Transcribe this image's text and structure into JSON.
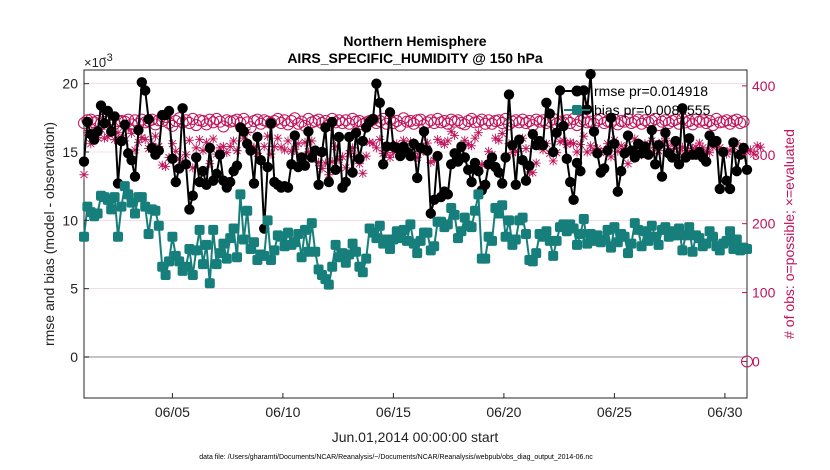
{
  "chart_data": {
    "type": "line",
    "title": "Northern Hemisphere",
    "subtitle": "AIRS_SPECIFIC_HUMIDITY @ 150 hPa",
    "xlabel": "Jun.01,2014 00:00:00 start",
    "ylabel": "rmse and bias (model - observation)",
    "y2label": "# of obs: o=possible; ×=evaluated",
    "y_exponent_label": "×10",
    "y_exponent_power": "-3",
    "footnote": "data file: /Users/gharamti/Documents/NCAR/Reanalysis/~/Documents/NCAR/Reanalysis/webpub/obs_diag_output_2014-06.nc",
    "x_ticks": [
      "06/05",
      "06/10",
      "06/15",
      "06/20",
      "06/25",
      "06/30"
    ],
    "x_tick_days": [
      5,
      10,
      15,
      20,
      25,
      30
    ],
    "xlim": [
      1,
      31
    ],
    "y_ticks": [
      "0",
      "5",
      "10",
      "15",
      "20"
    ],
    "ylim": [
      -3,
      21
    ],
    "y2_ticks": [
      "0",
      "100",
      "200",
      "300",
      "400"
    ],
    "y2lim": [
      -53,
      423
    ],
    "grid": "horizontal",
    "legend_placement": "top-right",
    "series": [
      {
        "name": "rmse pr=0.014918",
        "color": "#000000",
        "axis": "left",
        "marker": "circle",
        "values": [
          14.3,
          17.2,
          16.3,
          15.9,
          16.5,
          18.4,
          17.1,
          18.0,
          16.5,
          17.6,
          12.7,
          15.8,
          17.0,
          14.9,
          14.4,
          13.2,
          16.6,
          20.1,
          19.5,
          17.4,
          15.3,
          14.8,
          15.1,
          17.7,
          17.7,
          18.0,
          14.5,
          12.8,
          13.8,
          18.2,
          14.1,
          10.8,
          11.8,
          14.6,
          12.8,
          13.6,
          12.6,
          15.3,
          12.9,
          13.4,
          14.8,
          12.9,
          12.4,
          12.8,
          13.6,
          14.0,
          16.8,
          16.5,
          15.6,
          15.1,
          12.7,
          16.1,
          14.4,
          9.4,
          13.9,
          17.1,
          12.8,
          12.6,
          12.4,
          12.5,
          12.4,
          14.1,
          16.2,
          13.9,
          14.6,
          14.0,
          16.5,
          14.6,
          15.1,
          12.6,
          15.0,
          16.8,
          12.8,
          17.2,
          13.7,
          16.1,
          12.4,
          12.8,
          16.1,
          13.5,
          16.4,
          14.5,
          15.8,
          16.8,
          17.2,
          17.4,
          20.0,
          18.6,
          14.1,
          15.4,
          17.9,
          15.4,
          15.3,
          14.7,
          15.4,
          15.0,
          14.7,
          15.6,
          13.1,
          15.3,
          16.5,
          15.1,
          10.5,
          11.5,
          14.7,
          11.7,
          12.1,
          11.9,
          14.1,
          14.9,
          14.3,
          15.4,
          14.6,
          13.7,
          12.8,
          14.2,
          13.6,
          12.2,
          12.6,
          14.1,
          14.6,
          13.9,
          13.5,
          12.7,
          14.6,
          19.2,
          15.5,
          12.6,
          15.9,
          14.4,
          12.9,
          14.0,
          16.3,
          15.5,
          15.8,
          15.5,
          18.6,
          17.8,
          15.0,
          16.4,
          19.5,
          16.9,
          14.5,
          12.8,
          11.5,
          14.2,
          13.6,
          19.5,
          18.1,
          20.7,
          16.5,
          14.9,
          13.5,
          13.8,
          15.1,
          17.5,
          15.6,
          12.1,
          13.6,
          14.9,
          16.2,
          15.1,
          14.6,
          15.6,
          14.9,
          15.4,
          14.8,
          16.6,
          14.1,
          15.5,
          13.2,
          16.4,
          14.9,
          14.6,
          15.8,
          14.1,
          18.2,
          14.6,
          16.0,
          14.8,
          14.8,
          15.0,
          14.6,
          14.3,
          16.2,
          15.7,
          15.8,
          12.3,
          15.0,
          12.9,
          12.3,
          15.7,
          13.6,
          14.8,
          15.3,
          13.7
        ]
      },
      {
        "name": "bias pr=0.0085555",
        "color": "#177f7b",
        "axis": "left",
        "marker": "square",
        "values": [
          8.8,
          11.0,
          10.6,
          10.3,
          10.5,
          11.8,
          11.7,
          11.5,
          10.8,
          11.7,
          8.8,
          11.0,
          12.5,
          11.9,
          11.3,
          10.5,
          11.7,
          11.7,
          11.0,
          9.0,
          10.8,
          10.7,
          9.6,
          6.6,
          6.0,
          7.0,
          8.8,
          7.4,
          7.0,
          6.3,
          6.6,
          7.9,
          6.0,
          7.8,
          9.3,
          6.8,
          8.2,
          5.4,
          9.3,
          6.8,
          7.6,
          8.3,
          7.2,
          8.7,
          9.4,
          7.3,
          11.9,
          8.6,
          10.7,
          7.9,
          8.4,
          7.1,
          7.5,
          7.4,
          10.0,
          7.1,
          7.8,
          8.9,
          8.8,
          8.1,
          9.1,
          8.2,
          8.4,
          9.0,
          7.3,
          9.3,
          7.7,
          9.8,
          7.7,
          6.4,
          6.0,
          5.7,
          5.3,
          6.6,
          8.2,
          7.3,
          7.6,
          6.9,
          7.5,
          8.3,
          7.7,
          6.6,
          6.2,
          7.2,
          9.4,
          9.1,
          8.7,
          9.6,
          8.3,
          8.6,
          7.9,
          8.6,
          9.2,
          8.7,
          9.3,
          8.5,
          9.7,
          8.3,
          7.6,
          8.5,
          9.1,
          9.1,
          7.8,
          8.1,
          9.9,
          9.9,
          9.5,
          9.7,
          10.9,
          10.4,
          8.7,
          9.2,
          10.2,
          9.6,
          9.5,
          10.7,
          11.9,
          7.2,
          7.2,
          8.8,
          8.5,
          10.9,
          10.5,
          11.1,
          8.8,
          10.0,
          8.2,
          8.6,
          10.0,
          10.2,
          9.0,
          7.1,
          7.0,
          7.6,
          9.0,
          8.8,
          9.2,
          8.5,
          7.4,
          8.5,
          9.5,
          9.7,
          9.2,
          9.7,
          9.4,
          8.2,
          9.0,
          10.1,
          8.3,
          9.0,
          8.5,
          8.9,
          8.4,
          8.6,
          9.3,
          8.0,
          9.5,
          8.4,
          9.0,
          8.8,
          7.6,
          8.3,
          9.8,
          9.3,
          8.1,
          9.2,
          8.5,
          9.6,
          8.8,
          8.2,
          9.3,
          9.5,
          8.8,
          9.2,
          8.9,
          9.4,
          7.8,
          8.9,
          9.5,
          7.7,
          8.9,
          8.7,
          8.1,
          8.3,
          9.2,
          8.8,
          8.1,
          7.8,
          8.3,
          8.5,
          9.2,
          7.9,
          8.6,
          7.8,
          8.0,
          7.9
        ]
      },
      {
        "name": "obs possible",
        "color": "#c0135a",
        "axis": "right",
        "marker": "circle-open",
        "values": [
          346,
          350,
          351,
          347,
          349,
          345,
          352,
          349,
          351,
          345,
          349,
          349,
          348,
          351,
          344,
          350,
          345,
          351,
          347,
          349,
          351,
          344,
          350,
          349,
          355,
          346,
          342,
          349,
          353,
          347,
          350,
          346,
          352,
          343,
          350,
          349,
          344,
          351,
          347,
          352,
          348,
          341,
          350,
          348,
          349,
          351,
          346,
          352,
          347,
          340,
          349,
          351,
          345,
          350,
          348,
          346,
          349,
          352,
          346,
          350,
          344,
          349,
          353,
          345,
          348,
          342,
          352,
          347,
          349,
          351,
          346,
          349,
          343,
          352,
          347,
          350,
          346,
          350,
          345,
          352,
          348,
          349,
          344,
          347,
          349,
          351,
          346,
          349,
          352,
          345,
          351,
          346,
          349,
          342,
          353,
          348,
          349,
          345,
          350,
          351,
          343,
          347,
          350,
          346,
          352,
          347,
          349,
          345,
          351,
          348,
          350,
          346,
          344,
          349,
          352,
          347,
          348,
          351,
          345,
          350,
          345,
          349,
          350,
          346,
          352,
          344,
          348,
          350,
          347,
          351,
          346,
          349,
          343,
          351,
          348,
          350,
          346,
          349,
          352,
          345,
          348,
          347,
          350,
          346,
          352,
          343,
          349,
          351,
          347,
          348,
          345,
          350,
          352,
          346,
          349,
          347,
          351,
          344,
          349,
          348,
          352,
          346,
          348,
          351,
          345,
          350,
          347,
          349,
          352,
          343,
          348,
          350,
          346,
          349,
          351,
          345,
          352,
          347,
          349,
          344,
          351,
          348,
          350,
          346,
          349,
          343,
          352,
          347,
          348,
          350,
          345,
          349,
          351,
          346,
          348,
          0
        ]
      },
      {
        "name": "obs evaluated",
        "color": "#c0135a",
        "axis": "right",
        "marker": "x",
        "values": [
          271,
          332,
          316,
          335,
          325,
          337,
          324,
          326,
          336,
          322,
          332,
          324,
          320,
          338,
          331,
          307,
          318,
          325,
          322,
          309,
          316,
          327,
          312,
          285,
          283,
          296,
          316,
          305,
          294,
          289,
          300,
          321,
          281,
          310,
          322,
          306,
          318,
          287,
          323,
          301,
          310,
          312,
          303,
          312,
          320,
          306,
          338,
          324,
          333,
          310,
          311,
          302,
          292,
          312,
          327,
          301,
          312,
          324,
          311,
          307,
          320,
          305,
          308,
          316,
          297,
          318,
          304,
          320,
          303,
          289,
          280,
          288,
          271,
          290,
          312,
          293,
          297,
          281,
          302,
          310,
          297,
          287,
          273,
          298,
          318,
          317,
          310,
          322,
          302,
          303,
          296,
          303,
          316,
          306,
          321,
          305,
          319,
          302,
          296,
          304,
          311,
          317,
          289,
          292,
          322,
          318,
          315,
          320,
          334,
          328,
          301,
          310,
          321,
          315,
          313,
          324,
          332,
          286,
          286,
          305,
          300,
          324,
          321,
          331,
          297,
          316,
          303,
          305,
          322,
          324,
          309,
          275,
          274,
          288,
          313,
          307,
          316,
          302,
          291,
          303,
          319,
          320,
          315,
          318,
          316,
          304,
          315,
          327,
          304,
          313,
          306,
          309,
          303,
          306,
          316,
          297,
          321,
          305,
          313,
          309,
          287,
          303,
          323,
          316,
          300,
          316,
          305,
          320,
          311,
          306,
          318,
          324,
          309,
          317,
          313,
          304,
          311,
          306,
          303,
          309,
          311,
          317,
          310,
          305,
          303,
          311,
          316,
          310,
          303,
          301,
          306,
          312,
          317,
          303,
          311,
          304,
          307,
          301,
          313,
          311
        ]
      }
    ]
  }
}
